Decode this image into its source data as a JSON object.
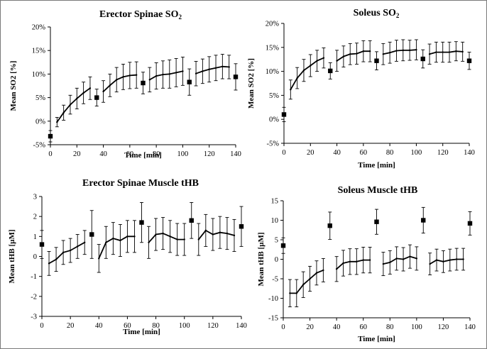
{
  "chart_data": [
    {
      "type": "line",
      "title": "Erector Spinae SO",
      "title_sub": "2",
      "xlabel": "Time [min]",
      "ylabel": "Mean SO2 [%]",
      "xlim": [
        0,
        140
      ],
      "ylim": [
        -5,
        20
      ],
      "xticks": [
        "0",
        "20",
        "40",
        "60",
        "80",
        "100",
        "120",
        "140"
      ],
      "yticks": [
        "-5%",
        "0%",
        "5%",
        "10%",
        "15%",
        "20%"
      ],
      "grid": false,
      "series": [
        {
          "x": [
            5,
            10,
            15,
            20,
            25,
            30
          ],
          "values": [
            -0.2,
            1.8,
            3.5,
            4.8,
            6.0,
            7.0
          ],
          "err": [
            1.0,
            1.6,
            2.0,
            2.2,
            2.3,
            2.4
          ]
        },
        {
          "x": [
            40,
            45,
            50,
            55,
            60,
            65
          ],
          "values": [
            6.3,
            7.6,
            8.8,
            9.4,
            9.7,
            9.8
          ],
          "err": [
            2.3,
            2.4,
            2.6,
            2.7,
            2.8,
            2.8
          ]
        },
        {
          "x": [
            75,
            80,
            85,
            90,
            95,
            100
          ],
          "values": [
            8.8,
            9.6,
            9.9,
            10.0,
            10.3,
            10.6
          ],
          "err": [
            2.6,
            2.8,
            2.9,
            3.0,
            3.0,
            3.0
          ]
        },
        {
          "x": [
            110,
            115,
            120,
            125,
            130,
            135
          ],
          "values": [
            10.1,
            10.6,
            11.0,
            11.3,
            11.6,
            11.5
          ],
          "err": [
            2.6,
            2.6,
            2.7,
            2.7,
            2.6,
            2.5
          ]
        }
      ],
      "markers": {
        "x": [
          0,
          35,
          70,
          105,
          140
        ],
        "values": [
          -3.2,
          5.0,
          8.1,
          8.3,
          9.4
        ],
        "err": [
          1.2,
          1.8,
          2.3,
          2.8,
          2.8
        ]
      }
    },
    {
      "type": "line",
      "title": "Soleus SO",
      "title_sub": "2",
      "xlabel": "Time [min]",
      "ylabel": "Mean SO2 [%]",
      "xlim": [
        0,
        140
      ],
      "ylim": [
        -5,
        20
      ],
      "xticks": [
        "0",
        "20",
        "40",
        "60",
        "80",
        "100",
        "120",
        "140"
      ],
      "yticks": [
        "-5%",
        "0%",
        "5%",
        "10%",
        "15%",
        "20%"
      ],
      "grid": false,
      "series": [
        {
          "x": [
            5,
            10,
            15,
            20,
            25,
            30
          ],
          "values": [
            6.2,
            8.6,
            10.2,
            11.2,
            12.2,
            12.8
          ],
          "err": [
            2.0,
            2.2,
            2.3,
            2.3,
            2.2,
            2.1
          ]
        },
        {
          "x": [
            40,
            45,
            50,
            55,
            60,
            65
          ],
          "values": [
            12.2,
            13.1,
            13.6,
            13.7,
            14.2,
            14.2
          ],
          "err": [
            2.2,
            2.2,
            2.2,
            2.2,
            2.2,
            2.2
          ]
        },
        {
          "x": [
            75,
            80,
            85,
            90,
            95,
            100
          ],
          "values": [
            13.6,
            13.9,
            14.3,
            14.4,
            14.4,
            14.5
          ],
          "err": [
            2.2,
            2.2,
            2.2,
            2.2,
            2.1,
            2.1
          ]
        },
        {
          "x": [
            110,
            115,
            120,
            125,
            130,
            135
          ],
          "values": [
            13.6,
            14.0,
            14.0,
            14.0,
            14.2,
            14.1
          ],
          "err": [
            2.1,
            2.1,
            2.1,
            2.1,
            2.0,
            2.0
          ]
        }
      ],
      "markers": {
        "x": [
          0,
          35,
          70,
          105,
          140
        ],
        "values": [
          1.0,
          10.1,
          12.2,
          12.6,
          12.2
        ],
        "err": [
          1.5,
          1.7,
          1.9,
          1.9,
          1.8
        ]
      }
    },
    {
      "type": "line",
      "title": "Erector Spinae Muscle tHB",
      "xlabel": "Time [min]",
      "ylabel": "Mean tHB [µM]",
      "xlim": [
        0,
        140
      ],
      "ylim": [
        -3,
        3
      ],
      "xticks": [
        "0",
        "20",
        "40",
        "60",
        "80",
        "100",
        "120",
        "140"
      ],
      "yticks": [
        "-3",
        "-2",
        "-1",
        "0",
        "1",
        "2",
        "3"
      ],
      "grid": false,
      "series": [
        {
          "x": [
            5,
            10,
            15,
            20,
            25,
            30
          ],
          "values": [
            -0.35,
            -0.15,
            0.2,
            0.3,
            0.5,
            0.7
          ],
          "err": [
            0.6,
            0.6,
            0.6,
            0.6,
            0.6,
            0.6
          ]
        },
        {
          "x": [
            40,
            45,
            50,
            55,
            60,
            65
          ],
          "values": [
            -0.1,
            0.7,
            0.9,
            0.8,
            1.0,
            1.0
          ],
          "err": [
            0.7,
            0.8,
            0.8,
            0.8,
            0.8,
            0.8
          ]
        },
        {
          "x": [
            75,
            80,
            85,
            90,
            95,
            100
          ],
          "values": [
            0.7,
            1.1,
            1.15,
            1.0,
            0.85,
            0.85
          ],
          "err": [
            0.8,
            0.8,
            0.8,
            0.8,
            0.8,
            0.8
          ]
        },
        {
          "x": [
            110,
            115,
            120,
            125,
            130,
            135
          ],
          "values": [
            0.85,
            1.3,
            1.1,
            1.2,
            1.15,
            1.05
          ],
          "err": [
            0.8,
            0.8,
            0.8,
            0.8,
            0.8,
            0.8
          ]
        }
      ],
      "markers": {
        "x": [
          0,
          35,
          70,
          105,
          140
        ],
        "values": [
          0.6,
          1.1,
          1.7,
          1.8,
          1.5
        ],
        "err": [
          0.7,
          1.2,
          1.0,
          0.9,
          1.0
        ]
      }
    },
    {
      "type": "line",
      "title": "Soleus Muscle tHB",
      "xlabel": "Time [min]",
      "ylabel": "Mean tHB [µM]",
      "xlim": [
        0,
        140
      ],
      "ylim": [
        -15,
        15
      ],
      "xticks": [
        "0",
        "20",
        "40",
        "60",
        "80",
        "100",
        "120",
        "140"
      ],
      "yticks": [
        "-15",
        "-10",
        "-5",
        "0",
        "5",
        "10",
        "15"
      ],
      "grid": false,
      "series": [
        {
          "x": [
            5,
            10,
            15,
            20,
            25,
            30
          ],
          "values": [
            -8.7,
            -8.7,
            -6.5,
            -5.0,
            -3.5,
            -2.8
          ],
          "err": [
            3.5,
            3.5,
            3.3,
            3.2,
            3.1,
            3.0
          ]
        },
        {
          "x": [
            40,
            45,
            50,
            55,
            60,
            65
          ],
          "values": [
            -2.5,
            -1.0,
            -0.6,
            -0.6,
            -0.2,
            -0.2
          ],
          "err": [
            3.2,
            3.3,
            3.3,
            3.3,
            3.3,
            3.3
          ]
        },
        {
          "x": [
            75,
            80,
            85,
            90,
            95,
            100
          ],
          "values": [
            -1.2,
            -0.8,
            0.2,
            0.0,
            0.7,
            0.2
          ],
          "err": [
            3.0,
            3.0,
            3.0,
            3.0,
            3.0,
            3.0
          ]
        },
        {
          "x": [
            110,
            115,
            120,
            125,
            130,
            135
          ],
          "values": [
            -1.2,
            -0.2,
            -0.6,
            -0.2,
            0.0,
            0.0
          ],
          "err": [
            2.8,
            2.8,
            2.8,
            2.8,
            2.8,
            2.8
          ]
        }
      ],
      "markers": {
        "x": [
          0,
          35,
          70,
          105,
          140
        ],
        "values": [
          3.5,
          8.6,
          9.6,
          10.0,
          9.2
        ],
        "err": [
          2.0,
          3.5,
          3.2,
          3.3,
          3.0
        ]
      }
    }
  ]
}
